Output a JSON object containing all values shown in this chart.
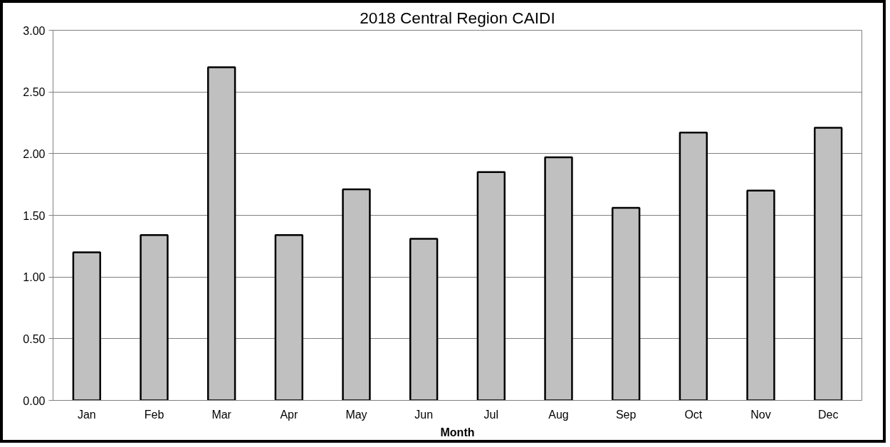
{
  "chart_data": {
    "type": "bar",
    "title": "2018 Central Region CAIDI",
    "xlabel": "Month",
    "categories": [
      "Jan",
      "Feb",
      "Mar",
      "Apr",
      "May",
      "Jun",
      "Jul",
      "Aug",
      "Sep",
      "Oct",
      "Nov",
      "Dec"
    ],
    "values": [
      1.2,
      1.34,
      2.7,
      1.34,
      1.71,
      1.31,
      1.85,
      1.97,
      1.56,
      2.17,
      1.7,
      2.21
    ],
    "color": "#c0c0c0",
    "ylim": [
      0,
      3
    ],
    "yticks": [
      {
        "value": 0,
        "label": "0.00"
      },
      {
        "value": 0.5,
        "label": "0.50"
      },
      {
        "value": 1,
        "label": "1.00"
      },
      {
        "value": 1.5,
        "label": "1.50"
      },
      {
        "value": 2,
        "label": "2.00"
      },
      {
        "value": 2.5,
        "label": "2.50"
      },
      {
        "value": 3,
        "label": "3.00"
      }
    ],
    "grid": "y"
  }
}
